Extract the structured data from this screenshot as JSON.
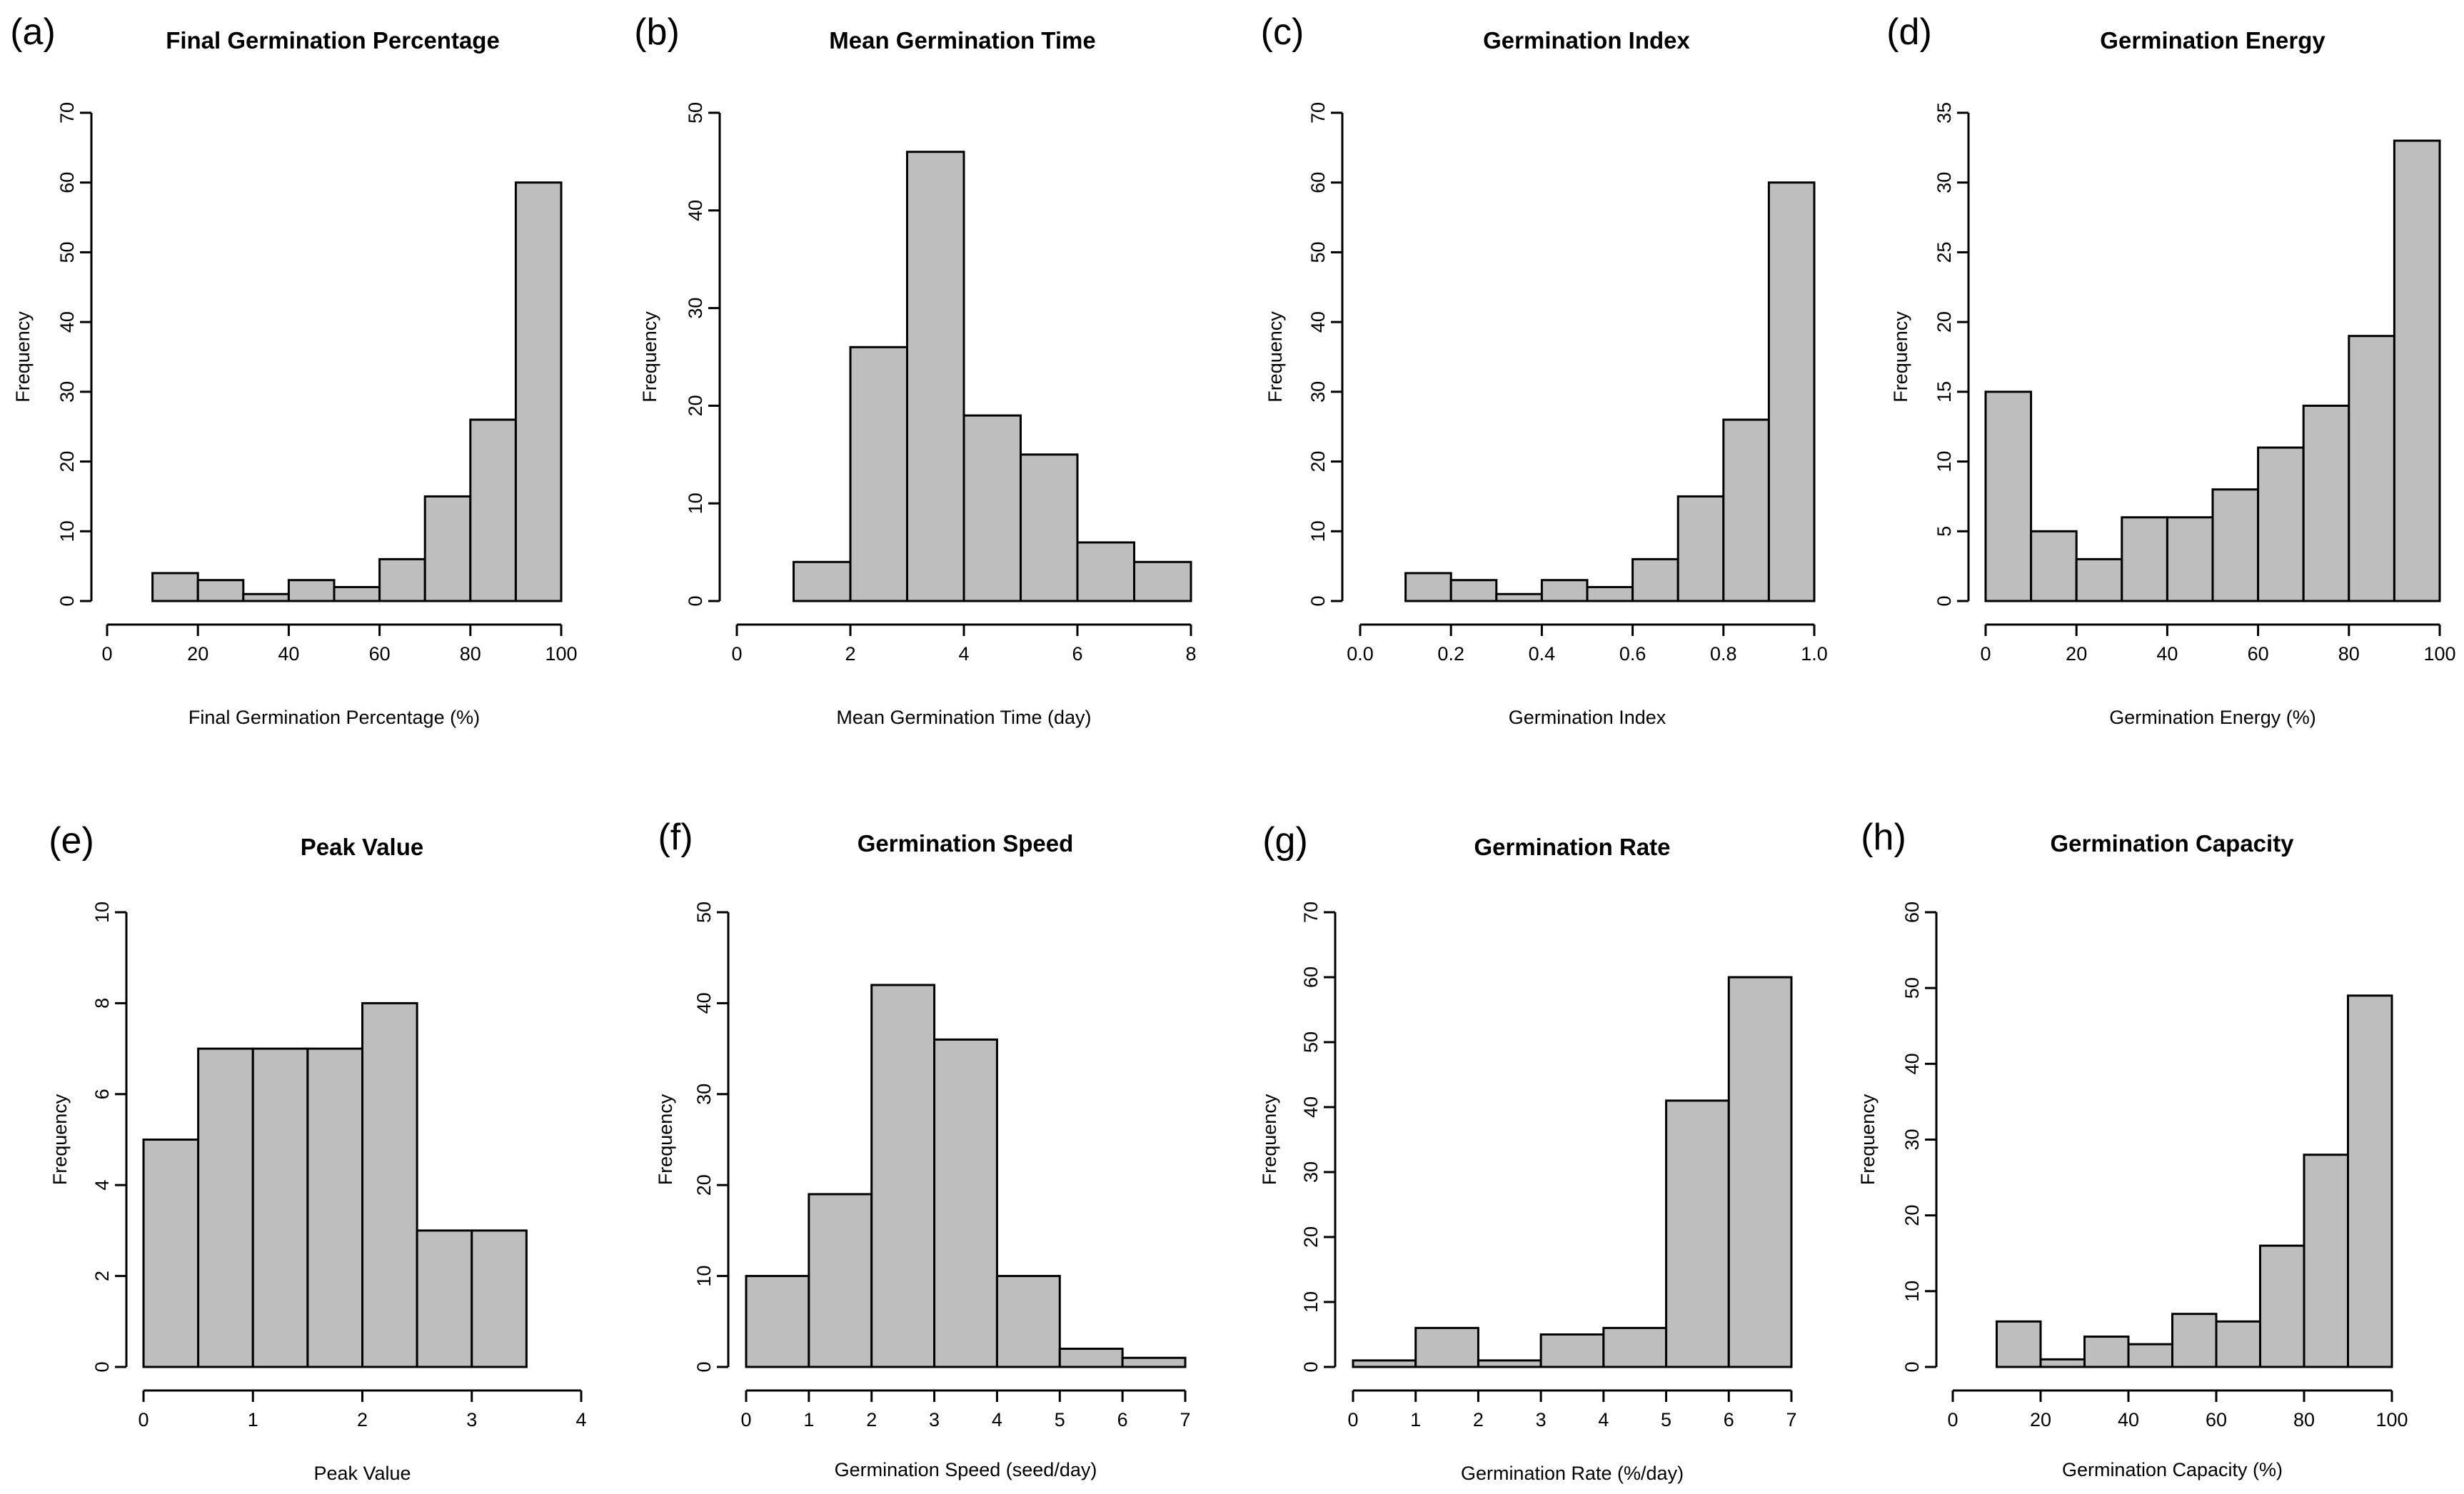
{
  "chart_data": [
    {
      "type": "bar",
      "panel": "(a)",
      "title": "Final Germination Percentage",
      "xlabel": "Final Germination Percentage (%)",
      "ylabel": "Frequency",
      "bin_start": 10,
      "bin_width": 10,
      "values": [
        4,
        3,
        1,
        3,
        2,
        6,
        15,
        26,
        60
      ],
      "xlim": [
        0,
        100
      ],
      "xticks": [
        "0",
        "20",
        "40",
        "60",
        "80",
        "100"
      ],
      "ylim": [
        0,
        70
      ],
      "yticks": [
        "0",
        "10",
        "20",
        "30",
        "40",
        "50",
        "60",
        "70"
      ]
    },
    {
      "type": "bar",
      "panel": "(b)",
      "title": "Mean Germination Time",
      "xlabel": "Mean Germination Time (day)",
      "ylabel": "Frequency",
      "bin_start": 1,
      "bin_width": 1,
      "values": [
        4,
        26,
        46,
        19,
        15,
        6,
        4
      ],
      "xlim": [
        0,
        8
      ],
      "xticks": [
        "0",
        "2",
        "4",
        "6",
        "8"
      ],
      "ylim": [
        0,
        50
      ],
      "yticks": [
        "0",
        "10",
        "20",
        "30",
        "40",
        "50"
      ]
    },
    {
      "type": "bar",
      "panel": "(c)",
      "title": "Germination Index",
      "xlabel": "Germination Index",
      "ylabel": "Frequency",
      "bin_start": 0.1,
      "bin_width": 0.1,
      "values": [
        4,
        3,
        1,
        3,
        2,
        6,
        15,
        26,
        60
      ],
      "xlim": [
        0,
        1
      ],
      "xticks": [
        "0.0",
        "0.2",
        "0.4",
        "0.6",
        "0.8",
        "1.0"
      ],
      "ylim": [
        0,
        70
      ],
      "yticks": [
        "0",
        "10",
        "20",
        "30",
        "40",
        "50",
        "60",
        "70"
      ]
    },
    {
      "type": "bar",
      "panel": "(d)",
      "title": "Germination Energy",
      "xlabel": "Germination Energy (%)",
      "ylabel": "Frequency",
      "bin_start": 0,
      "bin_width": 10,
      "values": [
        15,
        5,
        3,
        6,
        6,
        8,
        11,
        14,
        19,
        33
      ],
      "xlim": [
        0,
        100
      ],
      "xticks": [
        "0",
        "20",
        "40",
        "60",
        "80",
        "100"
      ],
      "ylim": [
        0,
        35
      ],
      "yticks": [
        "0",
        "5",
        "10",
        "15",
        "20",
        "25",
        "30",
        "35"
      ]
    },
    {
      "type": "bar",
      "panel": "(e)",
      "title": "Peak Value",
      "xlabel": "Peak Value",
      "ylabel": "Frequency",
      "bin_start": 0,
      "bin_width": 0.5,
      "values": [
        5,
        7,
        7,
        7,
        8,
        3,
        3
      ],
      "xlim": [
        0,
        4
      ],
      "xticks": [
        "0",
        "1",
        "2",
        "3",
        "4"
      ],
      "ylim": [
        0,
        10
      ],
      "yticks": [
        "0",
        "2",
        "4",
        "6",
        "8",
        "10"
      ]
    },
    {
      "type": "bar",
      "panel": "(f)",
      "title": "Germination Speed",
      "xlabel": "Germination Speed (seed/day)",
      "ylabel": "Frequency",
      "bin_start": 0,
      "bin_width": 1,
      "values": [
        10,
        19,
        42,
        36,
        10,
        2,
        1
      ],
      "xlim": [
        0,
        7
      ],
      "xticks": [
        "0",
        "1",
        "2",
        "3",
        "4",
        "5",
        "6",
        "7"
      ],
      "ylim": [
        0,
        50
      ],
      "yticks": [
        "0",
        "10",
        "20",
        "30",
        "40",
        "50"
      ]
    },
    {
      "type": "bar",
      "panel": "(g)",
      "title": "Germination Rate",
      "xlabel": "Germination Rate (%/day)",
      "ylabel": "Frequency",
      "bin_start": 0,
      "bin_width": 1,
      "values": [
        1,
        6,
        1,
        5,
        6,
        41,
        60
      ],
      "xlim": [
        0,
        7
      ],
      "xticks": [
        "0",
        "1",
        "2",
        "3",
        "4",
        "5",
        "6",
        "7"
      ],
      "ylim": [
        0,
        70
      ],
      "yticks": [
        "0",
        "10",
        "20",
        "30",
        "40",
        "50",
        "60",
        "70"
      ]
    },
    {
      "type": "bar",
      "panel": "(h)",
      "title": "Germination Capacity",
      "xlabel": "Germination Capacity (%)",
      "ylabel": "Frequency",
      "bin_start": 10,
      "bin_width": 10,
      "values": [
        6,
        1,
        4,
        3,
        7,
        6,
        16,
        28,
        49
      ],
      "xlim": [
        0,
        100
      ],
      "xticks": [
        "0",
        "20",
        "40",
        "60",
        "80",
        "100"
      ],
      "ylim": [
        0,
        60
      ],
      "yticks": [
        "0",
        "10",
        "20",
        "30",
        "40",
        "50",
        "60"
      ]
    }
  ]
}
